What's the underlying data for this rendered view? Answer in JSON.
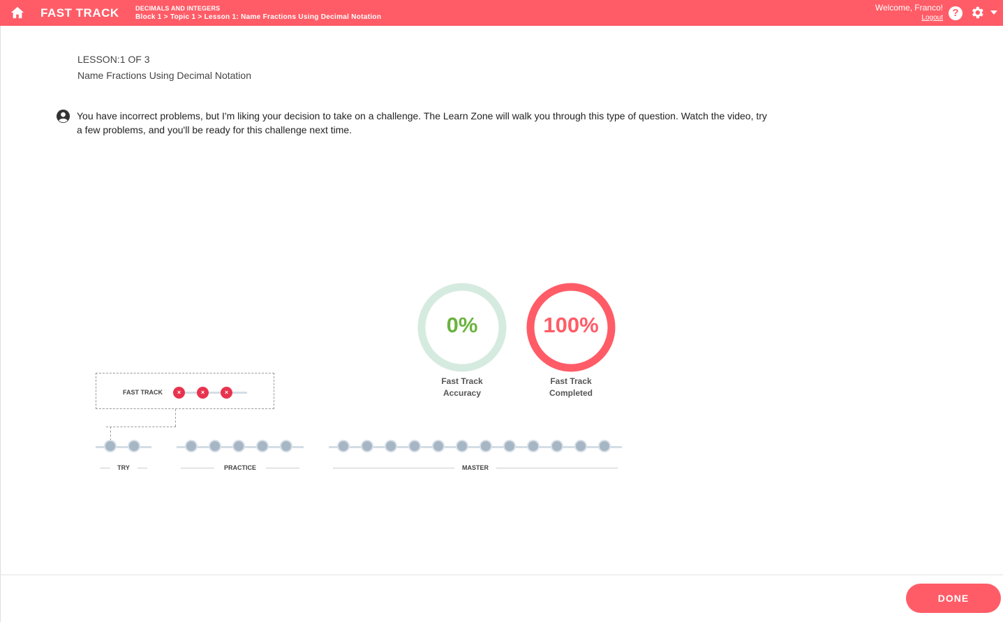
{
  "header": {
    "brand": "FAST TRACK",
    "unit": "DECIMALS AND INTEGERS",
    "breadcrumb": "Block 1 > Topic 1 > Lesson 1: Name Fractions Using Decimal Notation",
    "welcome": "Welcome, Franco!",
    "logout": "Logout",
    "help": "?"
  },
  "lesson": {
    "number": "LESSON:1 OF 3",
    "title": "Name Fractions Using Decimal Notation",
    "message": "You have incorrect problems, but I'm liking your decision to take on a challenge. The Learn Zone will walk you through this type of question. Watch the video, try a few problems, and you'll be ready for this challenge next time."
  },
  "stats": {
    "accuracy": {
      "value": "0%",
      "label_line1": "Fast Track",
      "label_line2": "Accuracy",
      "fraction": 0,
      "color": "#6cb33f",
      "ring_color": "#d6ebe0"
    },
    "completed": {
      "value": "100%",
      "label_line1": "Fast Track",
      "label_line2": "Completed",
      "fraction": 1,
      "color": "#ff5c67"
    }
  },
  "progress": {
    "fast_track_label": "FAST TRACK",
    "fast_track_mark": "×",
    "fast_track_results": [
      "incorrect",
      "incorrect",
      "incorrect"
    ],
    "sections": [
      {
        "label": "TRY",
        "problems": 2
      },
      {
        "label": "PRACTICE",
        "problems": 5
      },
      {
        "label": "MASTER",
        "problems": 12
      }
    ]
  },
  "footer": {
    "done_label": "DONE"
  },
  "colors": {
    "accent": "#ff5c67",
    "error": "#e8334f",
    "success": "#6cb33f"
  }
}
